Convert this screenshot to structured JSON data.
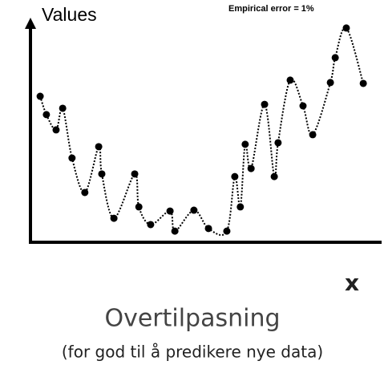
{
  "chart_data": {
    "type": "scatter",
    "title": "Overtilpasning",
    "subtitle": "(for god til å predikere nye data)",
    "y_label": "Values",
    "x_label": "x",
    "annotation": "Empirical error = 1%",
    "x": [
      2.8,
      4.6,
      7.4,
      9.3,
      12.0,
      15.7,
      19.7,
      20.6,
      24.1,
      30.1,
      31.3,
      34.7,
      40.3,
      41.7,
      47.2,
      51.4,
      56.7,
      59.0,
      60.6,
      62.0,
      63.7,
      67.6,
      70.4,
      71.5,
      75.0,
      78.7,
      81.5,
      86.6,
      88.0,
      91.2,
      96.1
    ],
    "values": [
      66.9,
      58.5,
      51.5,
      61.4,
      38.6,
      22.8,
      43.8,
      31.3,
      11.0,
      31.3,
      16.2,
      8.1,
      14.3,
      5.1,
      14.7,
      6.3,
      5.1,
      30.1,
      16.2,
      44.9,
      33.8,
      63.2,
      30.1,
      45.6,
      74.3,
      62.5,
      49.3,
      73.2,
      84.6,
      98.2,
      72.8
    ],
    "color": "#000000",
    "xlim": [
      0,
      100
    ],
    "ylim": [
      0,
      100
    ]
  }
}
